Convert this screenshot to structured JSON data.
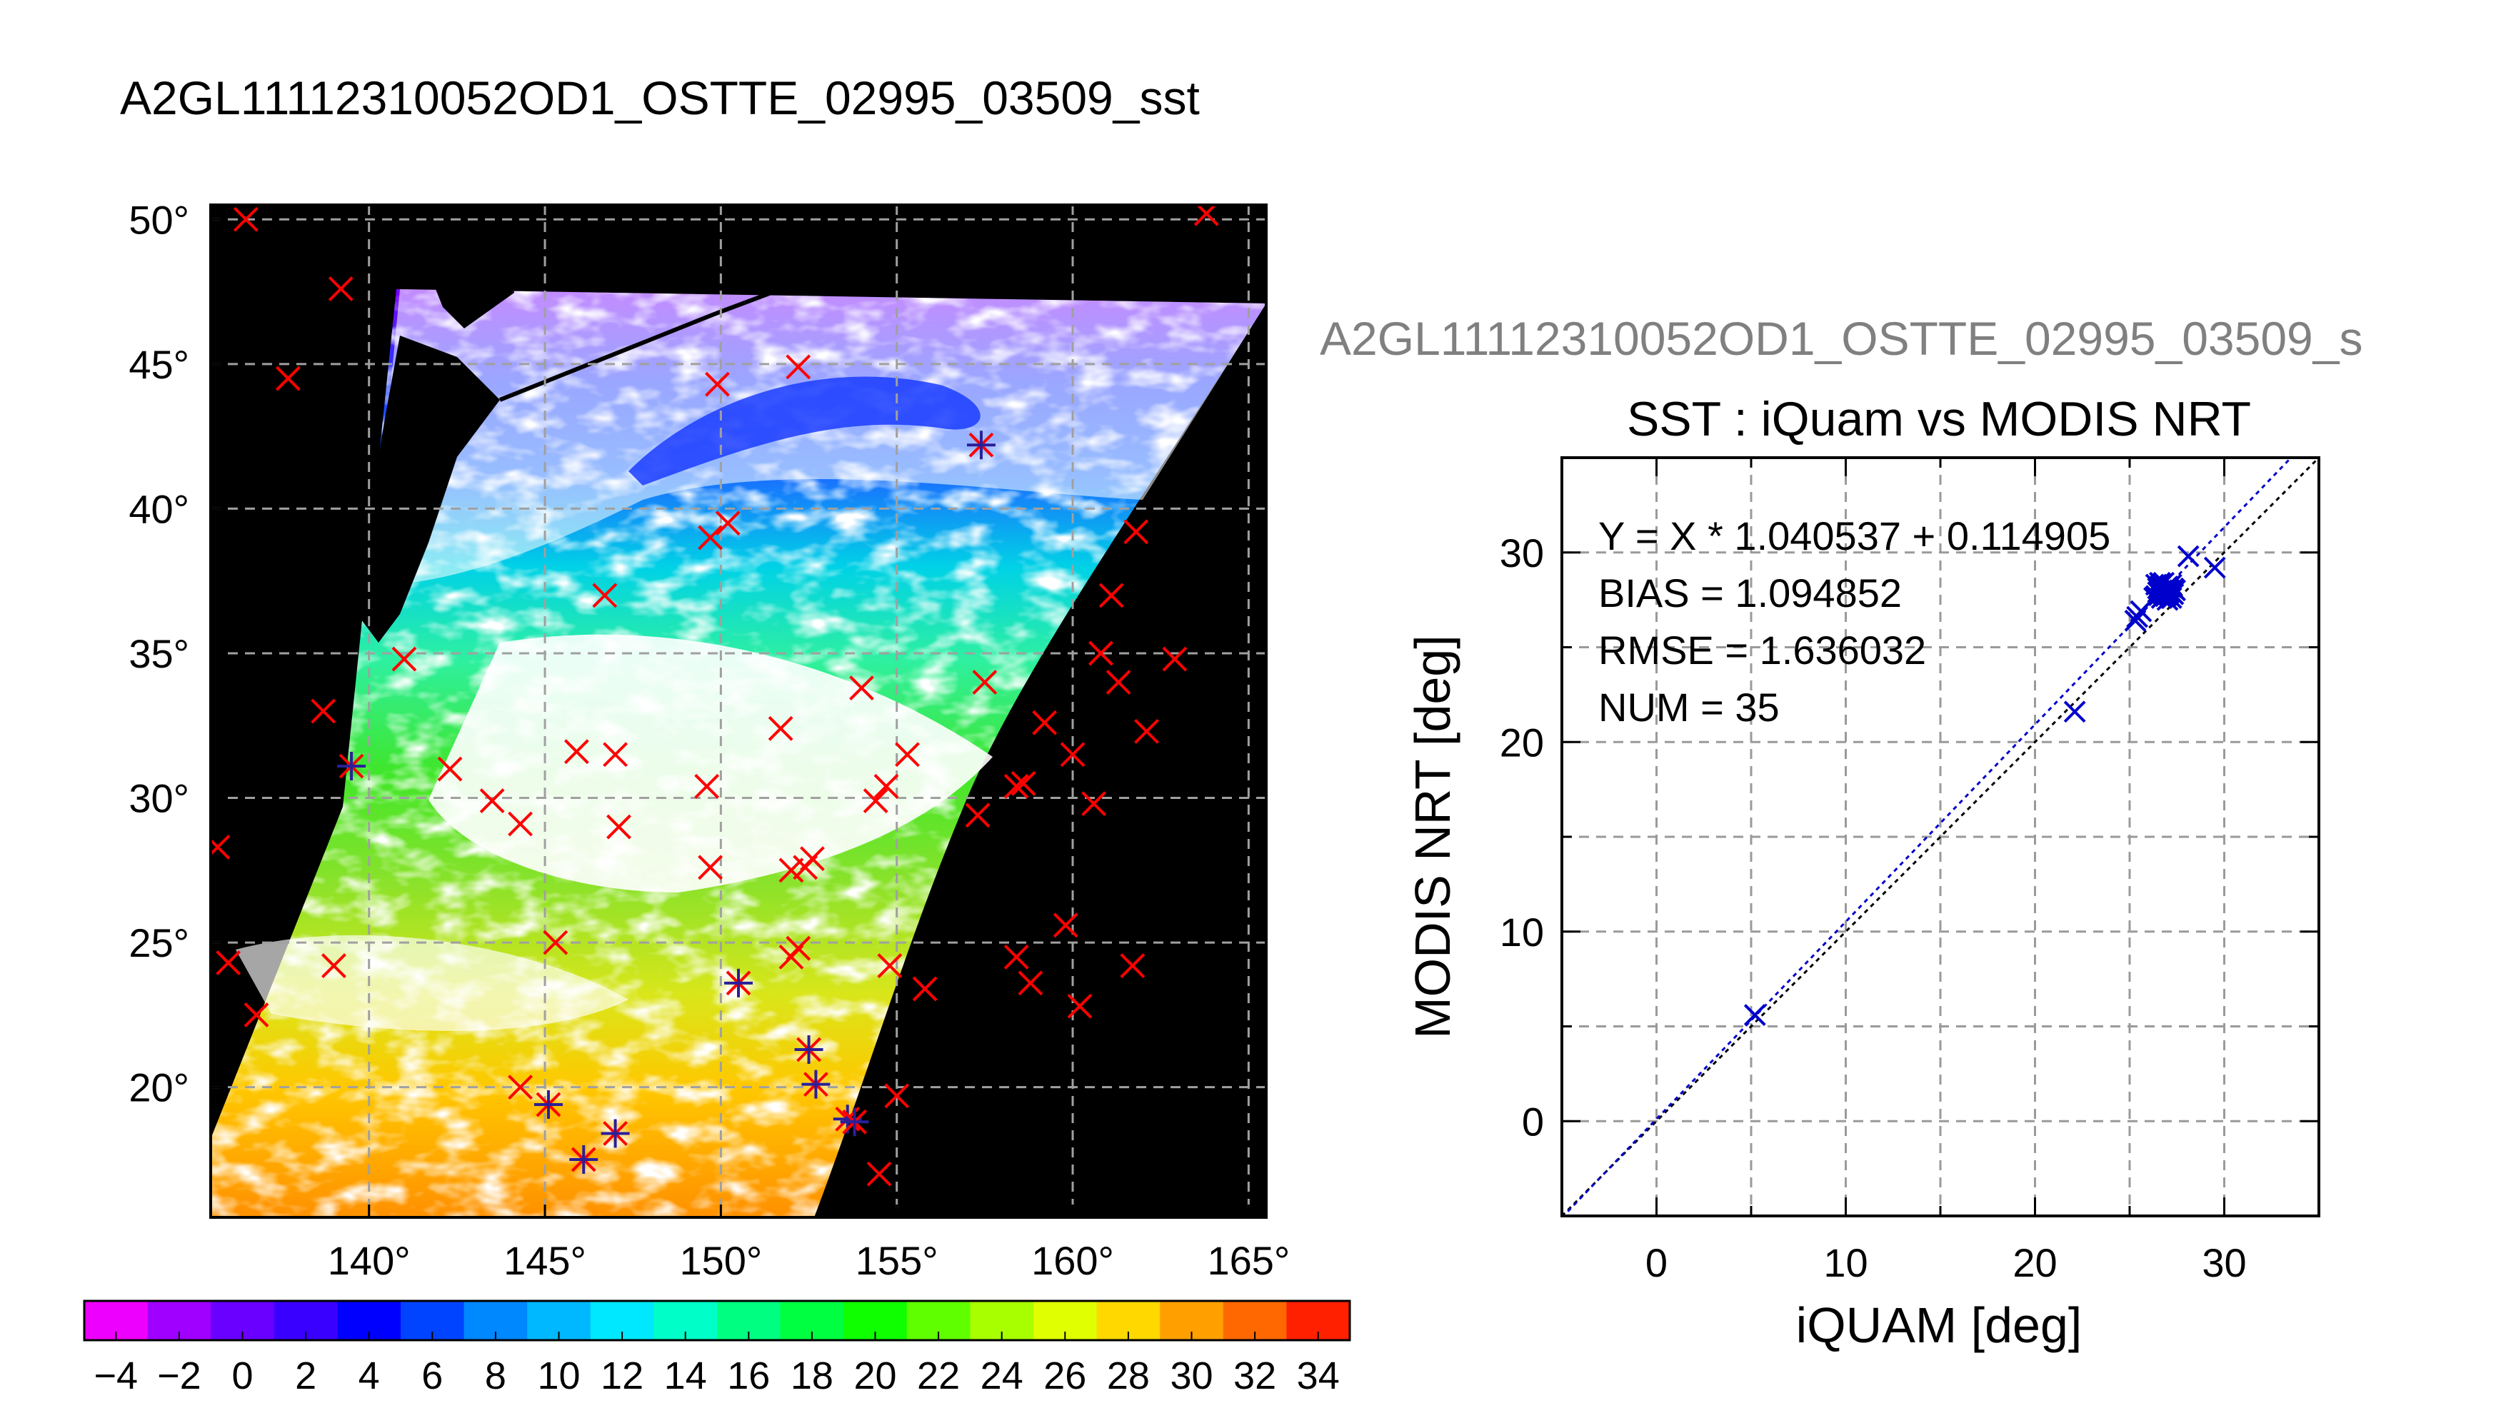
{
  "map": {
    "title": "A2GL11112310052OD1_OSTTE_02995_03509_sst",
    "lat_ticks": [
      50,
      45,
      40,
      35,
      30,
      25,
      20
    ],
    "lon_ticks": [
      140,
      145,
      150,
      155,
      160,
      165
    ],
    "lat_range": [
      15.5,
      50.5
    ],
    "lon_range": [
      135.5,
      165.5
    ],
    "degree_symbol": "°",
    "background_color": "#000000",
    "cloud_color": "#ffffff",
    "marker_color_in_swath": "#ff0000",
    "marker_color_matched": "#2a1f9a",
    "match_points": [
      {
        "lon": 136.5,
        "lat": 50.0,
        "matched": false
      },
      {
        "lon": 139.2,
        "lat": 47.6,
        "matched": false
      },
      {
        "lon": 137.7,
        "lat": 44.5,
        "matched": false
      },
      {
        "lon": 152.2,
        "lat": 44.9,
        "matched": false
      },
      {
        "lon": 163.8,
        "lat": 50.2,
        "matched": false
      },
      {
        "lon": 149.9,
        "lat": 44.3,
        "matched": false
      },
      {
        "lon": 157.4,
        "lat": 42.2,
        "matched": true
      },
      {
        "lon": 161.8,
        "lat": 39.2,
        "matched": false
      },
      {
        "lon": 150.2,
        "lat": 39.5,
        "matched": false
      },
      {
        "lon": 149.7,
        "lat": 39.0,
        "matched": false
      },
      {
        "lon": 146.7,
        "lat": 37.0,
        "matched": false
      },
      {
        "lon": 161.1,
        "lat": 37.0,
        "matched": false
      },
      {
        "lon": 157.5,
        "lat": 34.0,
        "matched": false
      },
      {
        "lon": 160.8,
        "lat": 35.0,
        "matched": false
      },
      {
        "lon": 141.0,
        "lat": 34.8,
        "matched": false
      },
      {
        "lon": 162.9,
        "lat": 34.8,
        "matched": false
      },
      {
        "lon": 161.3,
        "lat": 34.0,
        "matched": false
      },
      {
        "lon": 138.7,
        "lat": 33.0,
        "matched": false
      },
      {
        "lon": 154.0,
        "lat": 33.8,
        "matched": false
      },
      {
        "lon": 151.7,
        "lat": 32.4,
        "matched": false
      },
      {
        "lon": 159.2,
        "lat": 32.6,
        "matched": false
      },
      {
        "lon": 162.1,
        "lat": 32.3,
        "matched": false
      },
      {
        "lon": 145.9,
        "lat": 31.6,
        "matched": false
      },
      {
        "lon": 147.0,
        "lat": 31.5,
        "matched": false
      },
      {
        "lon": 160.0,
        "lat": 31.5,
        "matched": false
      },
      {
        "lon": 155.3,
        "lat": 31.5,
        "matched": false
      },
      {
        "lon": 142.3,
        "lat": 31.0,
        "matched": false
      },
      {
        "lon": 139.5,
        "lat": 31.1,
        "matched": true
      },
      {
        "lon": 149.6,
        "lat": 30.4,
        "matched": false
      },
      {
        "lon": 154.7,
        "lat": 30.4,
        "matched": false
      },
      {
        "lon": 154.4,
        "lat": 29.9,
        "matched": false
      },
      {
        "lon": 158.6,
        "lat": 30.5,
        "matched": false
      },
      {
        "lon": 158.4,
        "lat": 30.4,
        "matched": false
      },
      {
        "lon": 160.6,
        "lat": 29.8,
        "matched": false
      },
      {
        "lon": 143.5,
        "lat": 29.9,
        "matched": false
      },
      {
        "lon": 144.3,
        "lat": 29.1,
        "matched": false
      },
      {
        "lon": 157.3,
        "lat": 29.4,
        "matched": false
      },
      {
        "lon": 147.1,
        "lat": 29.0,
        "matched": false
      },
      {
        "lon": 135.7,
        "lat": 28.3,
        "matched": false
      },
      {
        "lon": 152.6,
        "lat": 27.9,
        "matched": false
      },
      {
        "lon": 152.4,
        "lat": 27.6,
        "matched": false
      },
      {
        "lon": 149.7,
        "lat": 27.6,
        "matched": false
      },
      {
        "lon": 152.0,
        "lat": 27.5,
        "matched": false
      },
      {
        "lon": 159.8,
        "lat": 25.6,
        "matched": false
      },
      {
        "lon": 145.3,
        "lat": 25.0,
        "matched": false
      },
      {
        "lon": 152.2,
        "lat": 24.8,
        "matched": false
      },
      {
        "lon": 158.4,
        "lat": 24.5,
        "matched": false
      },
      {
        "lon": 152.0,
        "lat": 24.5,
        "matched": false
      },
      {
        "lon": 136.0,
        "lat": 24.3,
        "matched": false
      },
      {
        "lon": 139.0,
        "lat": 24.2,
        "matched": false
      },
      {
        "lon": 154.8,
        "lat": 24.2,
        "matched": false
      },
      {
        "lon": 161.7,
        "lat": 24.2,
        "matched": false
      },
      {
        "lon": 158.8,
        "lat": 23.6,
        "matched": false
      },
      {
        "lon": 150.5,
        "lat": 23.6,
        "matched": true
      },
      {
        "lon": 155.8,
        "lat": 23.4,
        "matched": false
      },
      {
        "lon": 160.2,
        "lat": 22.8,
        "matched": false
      },
      {
        "lon": 136.8,
        "lat": 22.5,
        "matched": false
      },
      {
        "lon": 152.5,
        "lat": 21.3,
        "matched": true
      },
      {
        "lon": 152.7,
        "lat": 20.1,
        "matched": true
      },
      {
        "lon": 144.3,
        "lat": 20.0,
        "matched": false
      },
      {
        "lon": 155.0,
        "lat": 19.7,
        "matched": false
      },
      {
        "lon": 145.1,
        "lat": 19.4,
        "matched": true
      },
      {
        "lon": 153.6,
        "lat": 18.9,
        "matched": true
      },
      {
        "lon": 153.8,
        "lat": 18.8,
        "matched": true
      },
      {
        "lon": 147.0,
        "lat": 18.4,
        "matched": true
      },
      {
        "lon": 146.1,
        "lat": 17.5,
        "matched": true
      },
      {
        "lon": 154.5,
        "lat": 17.0,
        "matched": false
      }
    ]
  },
  "colorbar": {
    "tick_labels": [
      "−4",
      "−2",
      "0",
      "2",
      "4",
      "6",
      "8",
      "10",
      "12",
      "14",
      "16",
      "18",
      "20",
      "22",
      "24",
      "26",
      "28",
      "30",
      "32",
      "34"
    ],
    "min": -5,
    "max": 35,
    "steps": 40
  },
  "chart_data": {
    "type": "scatter",
    "title": "SST : iQuam vs MODIS NRT",
    "subtitle": "A2GL11112310052OD1_OSTTE_02995_03509_s",
    "xlabel": "iQUAM [deg]",
    "ylabel": "MODIS NRT [deg]",
    "xlim": [
      -5,
      35
    ],
    "ylim": [
      -5,
      35
    ],
    "xticks": [
      0,
      10,
      20,
      30
    ],
    "yticks": [
      0,
      10,
      20,
      30
    ],
    "grid": true,
    "annotations": [
      "Y = X * 1.040537 + 0.114905",
      "BIAS = 1.094852",
      "RMSE = 1.636032",
      "NUM = 35"
    ],
    "fit": {
      "slope": 1.040537,
      "intercept": 0.114905
    },
    "marker_color": "#0000cc",
    "fit_color": "#0000cc",
    "identity_color": "#000000",
    "points": [
      {
        "x": 5.2,
        "y": 5.6
      },
      {
        "x": 22.1,
        "y": 21.6
      },
      {
        "x": 25.3,
        "y": 26.4
      },
      {
        "x": 25.4,
        "y": 26.6
      },
      {
        "x": 25.6,
        "y": 26.9
      },
      {
        "x": 26.3,
        "y": 27.6
      },
      {
        "x": 26.4,
        "y": 28.3
      },
      {
        "x": 26.5,
        "y": 27.9
      },
      {
        "x": 26.5,
        "y": 28.1
      },
      {
        "x": 26.6,
        "y": 27.8
      },
      {
        "x": 26.6,
        "y": 28.2
      },
      {
        "x": 26.7,
        "y": 27.6
      },
      {
        "x": 26.7,
        "y": 28.0
      },
      {
        "x": 26.8,
        "y": 27.9
      },
      {
        "x": 26.8,
        "y": 28.4
      },
      {
        "x": 26.9,
        "y": 27.7
      },
      {
        "x": 26.9,
        "y": 28.1
      },
      {
        "x": 27.0,
        "y": 27.8
      },
      {
        "x": 27.0,
        "y": 28.2
      },
      {
        "x": 27.1,
        "y": 27.9
      },
      {
        "x": 27.1,
        "y": 28.0
      },
      {
        "x": 27.2,
        "y": 27.6
      },
      {
        "x": 27.2,
        "y": 28.3
      },
      {
        "x": 27.3,
        "y": 27.8
      },
      {
        "x": 27.4,
        "y": 28.0
      },
      {
        "x": 26.4,
        "y": 27.7
      },
      {
        "x": 26.6,
        "y": 28.4
      },
      {
        "x": 27.0,
        "y": 27.5
      },
      {
        "x": 27.3,
        "y": 28.1
      },
      {
        "x": 26.8,
        "y": 27.8
      },
      {
        "x": 26.9,
        "y": 28.0
      },
      {
        "x": 27.1,
        "y": 28.2
      },
      {
        "x": 26.7,
        "y": 27.9
      },
      {
        "x": 28.1,
        "y": 29.8
      },
      {
        "x": 29.5,
        "y": 29.2
      }
    ]
  }
}
